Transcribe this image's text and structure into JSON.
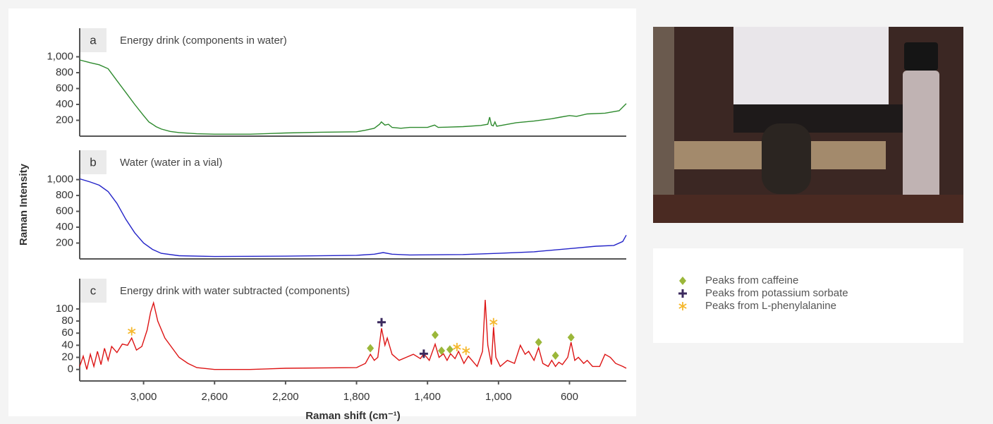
{
  "chart_data": [
    {
      "type": "line",
      "panel": "a",
      "title": "Energy drink (components in water)",
      "x": [
        3360,
        3300,
        3250,
        3200,
        3150,
        3100,
        3050,
        3000,
        2970,
        2950,
        2930,
        2900,
        2850,
        2800,
        2700,
        2600,
        2400,
        2200,
        2000,
        1800,
        1750,
        1700,
        1670,
        1660,
        1640,
        1620,
        1600,
        1550,
        1500,
        1400,
        1360,
        1340,
        1200,
        1100,
        1060,
        1050,
        1040,
        1030,
        1020,
        1010,
        900,
        800,
        700,
        650,
        600,
        560,
        500,
        400,
        320,
        280
      ],
      "series": [
        {
          "color": "#2e8a2e",
          "values": [
            960,
            925,
            900,
            850,
            700,
            550,
            400,
            260,
            180,
            150,
            120,
            90,
            60,
            45,
            30,
            25,
            25,
            40,
            50,
            55,
            75,
            100,
            150,
            180,
            140,
            150,
            110,
            100,
            110,
            110,
            140,
            110,
            120,
            135,
            150,
            240,
            140,
            130,
            180,
            125,
            170,
            190,
            220,
            240,
            260,
            250,
            280,
            290,
            320,
            410
          ]
        }
      ],
      "xlim": [
        3360,
        280
      ],
      "ylim": [
        0,
        1360
      ],
      "yticks": [
        200,
        400,
        600,
        800,
        {
          "value": 1000,
          "label": "1,000"
        }
      ]
    },
    {
      "type": "line",
      "panel": "b",
      "title": "Water (water in a vial)",
      "ylabel": "Raman Intensity",
      "x": [
        3360,
        3300,
        3250,
        3200,
        3150,
        3100,
        3050,
        3000,
        2950,
        2900,
        2800,
        2600,
        2200,
        1800,
        1700,
        1650,
        1600,
        1500,
        1200,
        1000,
        800,
        600,
        450,
        350,
        300,
        280
      ],
      "series": [
        {
          "color": "#2323c8",
          "values": [
            1010,
            970,
            930,
            850,
            700,
            500,
            330,
            200,
            120,
            70,
            40,
            30,
            35,
            45,
            60,
            80,
            60,
            50,
            55,
            70,
            90,
            130,
            160,
            170,
            220,
            300
          ]
        }
      ],
      "xlim": [
        3360,
        280
      ],
      "ylim": [
        0,
        1370
      ],
      "yticks": [
        200,
        400,
        600,
        800,
        {
          "value": 1000,
          "label": "1,000"
        }
      ]
    },
    {
      "type": "line",
      "panel": "c",
      "title": "Energy drink with water subtracted (components)",
      "xlabel": "Raman shift (cm⁻¹)",
      "x": [
        3360,
        3340,
        3320,
        3300,
        3280,
        3260,
        3240,
        3220,
        3200,
        3180,
        3150,
        3120,
        3090,
        3067,
        3040,
        3010,
        2980,
        2960,
        2944,
        2920,
        2880,
        2850,
        2800,
        2750,
        2700,
        2600,
        2400,
        2200,
        1800,
        1750,
        1722,
        1700,
        1680,
        1659,
        1640,
        1627,
        1600,
        1560,
        1520,
        1480,
        1440,
        1421,
        1390,
        1357,
        1335,
        1310,
        1290,
        1270,
        1245,
        1225,
        1195,
        1170,
        1120,
        1090,
        1075,
        1060,
        1040,
        1028,
        1015,
        990,
        950,
        910,
        877,
        850,
        830,
        800,
        774,
        750,
        720,
        700,
        679,
        660,
        640,
        610,
        591,
        570,
        550,
        520,
        500,
        470,
        430,
        400,
        370,
        340,
        300,
        280
      ],
      "series": [
        {
          "color": "#dd1414",
          "values": [
            5,
            22,
            0,
            25,
            5,
            30,
            8,
            35,
            15,
            38,
            28,
            42,
            40,
            52,
            32,
            38,
            65,
            95,
            110,
            80,
            52,
            40,
            20,
            10,
            3,
            0,
            0,
            2,
            3,
            10,
            25,
            15,
            20,
            68,
            40,
            52,
            25,
            15,
            20,
            25,
            18,
            26,
            15,
            42,
            20,
            26,
            15,
            26,
            18,
            30,
            10,
            22,
            5,
            30,
            115,
            40,
            8,
            70,
            20,
            5,
            15,
            10,
            40,
            25,
            30,
            15,
            36,
            10,
            5,
            15,
            5,
            12,
            8,
            20,
            45,
            15,
            20,
            10,
            15,
            5,
            5,
            25,
            20,
            10,
            5,
            2
          ]
        }
      ],
      "markers": [
        {
          "name": "Peaks from caffeine",
          "color": "#9bb73a",
          "symbol": "diamond",
          "x": [
            1722,
            1357,
            1321,
            1274,
            774,
            679,
            591
          ],
          "values": [
            35,
            57,
            31,
            33,
            45,
            23,
            53
          ]
        },
        {
          "name": "Peaks from potassium sorbate",
          "color": "#3b2a5e",
          "symbol": "plus",
          "x": [
            1659,
            1421
          ],
          "values": [
            78,
            26
          ]
        },
        {
          "name": "Peaks from L-phenylalanine",
          "color": "#f5b82e",
          "symbol": "asterisk",
          "x": [
            3067,
            1234,
            1183,
            1028
          ],
          "values": [
            63,
            37,
            31,
            78
          ]
        }
      ],
      "xlim": [
        3360,
        280
      ],
      "ylim": [
        -19,
        150
      ],
      "yticks": [
        0,
        20,
        40,
        60,
        80,
        100
      ],
      "xticks": [
        {
          "value": 3000,
          "label": "3,000"
        },
        {
          "value": 2600,
          "label": "2,600"
        },
        {
          "value": 2200,
          "label": "2,200"
        },
        {
          "value": 1800,
          "label": "1,800"
        },
        {
          "value": 1400,
          "label": "1,400"
        },
        {
          "value": 1000,
          "label": "1,000"
        },
        600
      ]
    }
  ]
}
